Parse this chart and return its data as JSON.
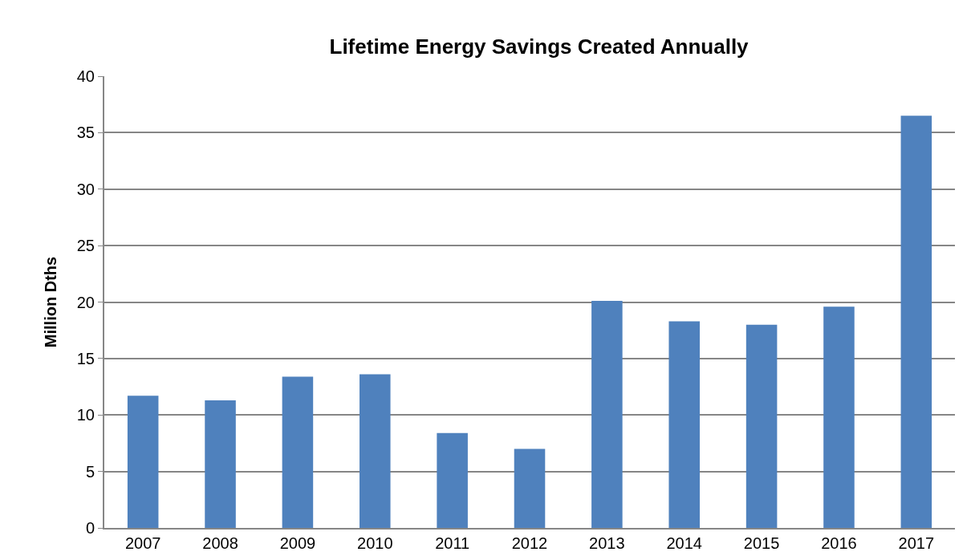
{
  "chart_data": {
    "type": "bar",
    "title": "Lifetime Energy Savings Created Annually",
    "ylabel": "Million Dths",
    "categories": [
      "2007",
      "2008",
      "2009",
      "2010",
      "2011",
      "2012",
      "2013",
      "2014",
      "2015",
      "2016",
      "2017"
    ],
    "values": [
      11.7,
      11.3,
      13.4,
      13.6,
      8.4,
      7.0,
      20.1,
      18.3,
      18.0,
      19.6,
      36.5
    ],
    "color": "#4f81bd",
    "ylim": [
      0,
      40
    ],
    "yticks": [
      0,
      5,
      10,
      15,
      20,
      25,
      30,
      35,
      40
    ],
    "grid": "y",
    "legend": false
  }
}
